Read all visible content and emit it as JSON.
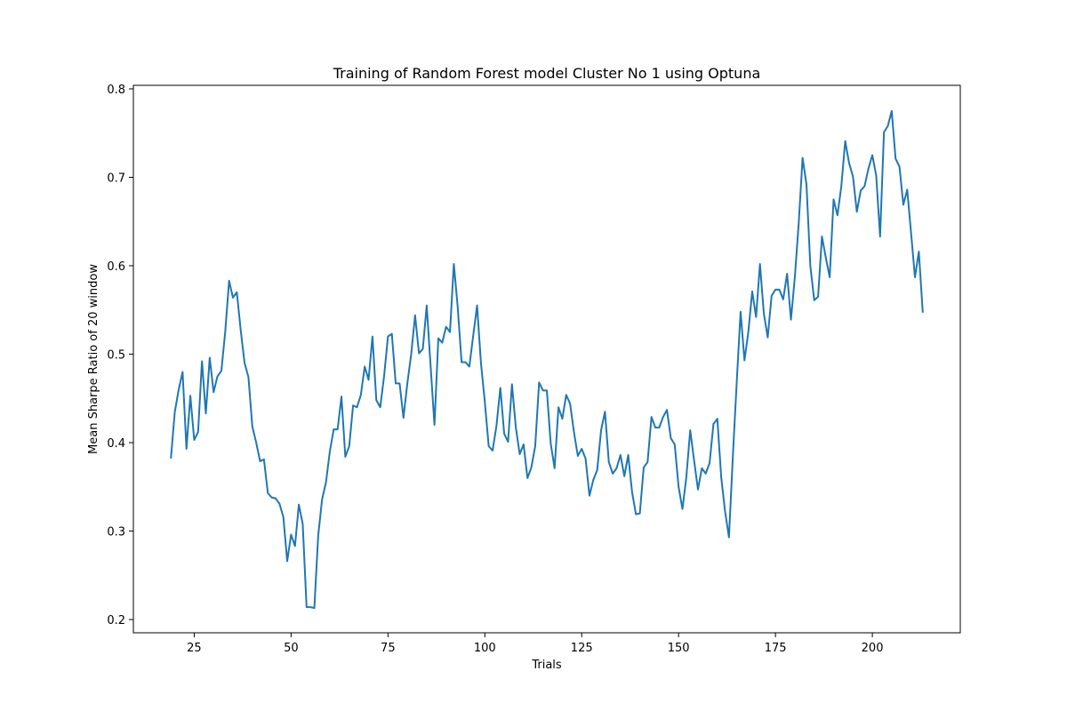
{
  "chart_data": {
    "type": "line",
    "title": "Training of Random Forest model Cluster No 1 using Optuna",
    "xlabel": "Trials",
    "ylabel": "Mean Sharpe Ratio of 20 window",
    "xlim": [
      9.3,
      222.7
    ],
    "ylim": [
      0.185,
      0.804
    ],
    "xticks": [
      25,
      50,
      75,
      100,
      125,
      150,
      175,
      200
    ],
    "xtick_labels": [
      "25",
      "50",
      "75",
      "100",
      "125",
      "150",
      "175",
      "200"
    ],
    "yticks": [
      0.2,
      0.3,
      0.4,
      0.5,
      0.6,
      0.7,
      0.8
    ],
    "ytick_labels": [
      "0.2",
      "0.3",
      "0.4",
      "0.5",
      "0.6",
      "0.7",
      "0.8"
    ],
    "grid": false,
    "line_color": "#1f77b4",
    "x_start": 19,
    "x_step": 1,
    "y": [
      0.383,
      0.435,
      0.46,
      0.48,
      0.393,
      0.453,
      0.403,
      0.412,
      0.492,
      0.433,
      0.496,
      0.457,
      0.475,
      0.481,
      0.525,
      0.583,
      0.564,
      0.57,
      0.527,
      0.49,
      0.474,
      0.418,
      0.4,
      0.379,
      0.381,
      0.343,
      0.338,
      0.337,
      0.331,
      0.316,
      0.266,
      0.296,
      0.283,
      0.33,
      0.308,
      0.214,
      0.214,
      0.213,
      0.295,
      0.336,
      0.355,
      0.39,
      0.415,
      0.415,
      0.452,
      0.384,
      0.396,
      0.442,
      0.44,
      0.454,
      0.486,
      0.471,
      0.52,
      0.448,
      0.44,
      0.475,
      0.52,
      0.523,
      0.467,
      0.467,
      0.428,
      0.467,
      0.5,
      0.544,
      0.501,
      0.506,
      0.555,
      0.487,
      0.42,
      0.518,
      0.513,
      0.531,
      0.525,
      0.602,
      0.553,
      0.491,
      0.491,
      0.486,
      0.521,
      0.555,
      0.49,
      0.446,
      0.396,
      0.391,
      0.419,
      0.462,
      0.41,
      0.401,
      0.466,
      0.417,
      0.387,
      0.398,
      0.36,
      0.372,
      0.396,
      0.468,
      0.459,
      0.459,
      0.399,
      0.371,
      0.44,
      0.427,
      0.454,
      0.444,
      0.412,
      0.385,
      0.393,
      0.382,
      0.34,
      0.358,
      0.369,
      0.414,
      0.435,
      0.378,
      0.365,
      0.371,
      0.386,
      0.362,
      0.386,
      0.344,
      0.319,
      0.32,
      0.372,
      0.378,
      0.429,
      0.417,
      0.417,
      0.429,
      0.437,
      0.405,
      0.398,
      0.35,
      0.325,
      0.361,
      0.414,
      0.38,
      0.347,
      0.371,
      0.365,
      0.377,
      0.421,
      0.427,
      0.361,
      0.322,
      0.293,
      0.384,
      0.468,
      0.548,
      0.493,
      0.525,
      0.571,
      0.542,
      0.602,
      0.546,
      0.519,
      0.566,
      0.573,
      0.573,
      0.562,
      0.591,
      0.539,
      0.587,
      0.648,
      0.722,
      0.692,
      0.6,
      0.561,
      0.565,
      0.633,
      0.609,
      0.587,
      0.675,
      0.657,
      0.69,
      0.741,
      0.716,
      0.701,
      0.661,
      0.685,
      0.69,
      0.71,
      0.725,
      0.702,
      0.633,
      0.751,
      0.758,
      0.775,
      0.721,
      0.712,
      0.669,
      0.686,
      0.637,
      0.587,
      0.616,
      0.548
    ]
  }
}
